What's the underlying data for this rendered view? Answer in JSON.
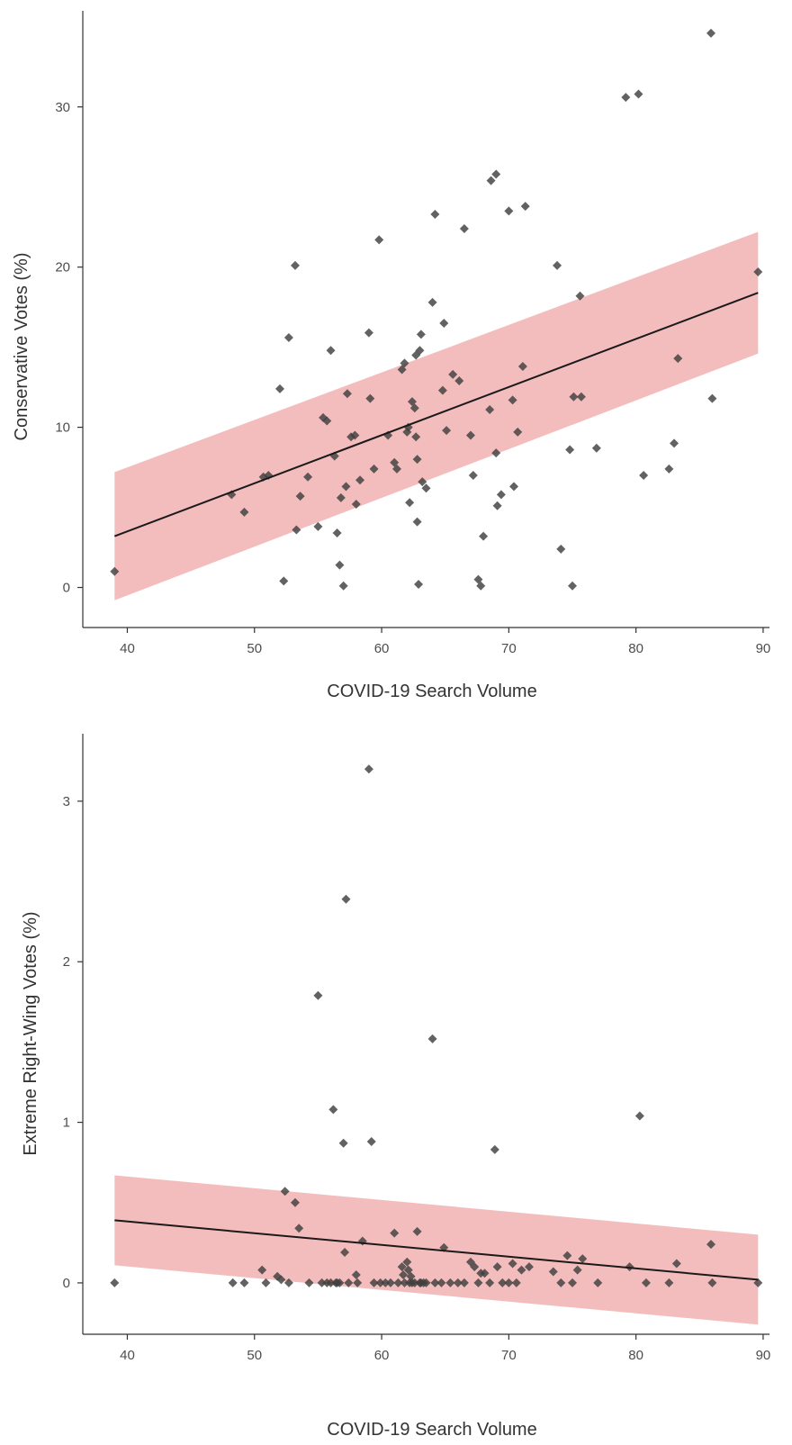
{
  "chart_data": [
    {
      "type": "scatter",
      "xlabel": "COVID-19 Search Volume",
      "ylabel": "Conservative Votes (%)",
      "xlim": [
        36.5,
        90.5
      ],
      "ylim": [
        -2.5,
        36.0
      ],
      "xticks": [
        "40",
        "50",
        "60",
        "70",
        "80",
        "90"
      ],
      "yticks": [
        "0",
        "10",
        "20",
        "30"
      ],
      "grid": false,
      "point_color": "#404040",
      "band_color": "#ee9999",
      "line_color": "#1a1a1a",
      "fit": {
        "x": [
          39,
          89.6
        ],
        "y": [
          3.2,
          18.4
        ],
        "band_low": [
          -0.8,
          14.6
        ],
        "band_high": [
          7.2,
          22.2
        ]
      },
      "series": [
        {
          "x": [
            39,
            48.2,
            49.2,
            50.7,
            51.1,
            52.0,
            52.3,
            52.7,
            53.2,
            53.3,
            53.6,
            54.2,
            55.0,
            55.4,
            55.7,
            56.0,
            56.3,
            56.5,
            56.7,
            56.8,
            57.0,
            57.2,
            57.3,
            57.6,
            57.9,
            58.0,
            58.3,
            59.0,
            59.1,
            59.4,
            59.8,
            60.5,
            61.0,
            61.2,
            61.6,
            61.8,
            62.0,
            62.1,
            62.2,
            62.4,
            62.6,
            62.7,
            62.7,
            62.8,
            62.8,
            62.9,
            63.0,
            63.1,
            63.2,
            63.5,
            64.0,
            64.2,
            64.8,
            64.9,
            65.1,
            65.6,
            66.1,
            66.5,
            67.0,
            67.2,
            67.6,
            67.8,
            68.0,
            68.5,
            68.6,
            69.0,
            69.0,
            69.1,
            69.4,
            70.0,
            70.3,
            70.4,
            70.7,
            71.1,
            71.3,
            73.8,
            74.1,
            74.8,
            75.0,
            75.1,
            75.6,
            75.7,
            76.9,
            79.2,
            80.2,
            80.6,
            82.6,
            83.0,
            83.3,
            85.9,
            86.0,
            89.6
          ],
          "y": [
            1.0,
            5.8,
            4.7,
            6.9,
            7.0,
            12.4,
            0.4,
            15.6,
            20.1,
            3.6,
            5.7,
            6.9,
            3.8,
            10.6,
            10.4,
            14.8,
            8.2,
            3.4,
            1.4,
            5.6,
            0.1,
            6.3,
            12.1,
            9.4,
            9.5,
            5.2,
            6.7,
            15.9,
            11.8,
            7.4,
            21.7,
            9.5,
            7.8,
            7.4,
            13.6,
            14.0,
            9.7,
            10.0,
            5.3,
            11.6,
            11.2,
            9.4,
            14.5,
            8.0,
            4.1,
            0.2,
            14.8,
            15.8,
            6.6,
            6.2,
            17.8,
            23.3,
            12.3,
            16.5,
            9.8,
            13.3,
            12.9,
            22.4,
            9.5,
            7.0,
            0.5,
            0.1,
            3.2,
            11.1,
            25.4,
            8.4,
            25.8,
            5.1,
            5.8,
            23.5,
            11.7,
            6.3,
            9.7,
            13.8,
            23.8,
            20.1,
            2.4,
            8.6,
            0.1,
            11.9,
            18.2,
            11.9,
            8.7,
            30.6,
            30.8,
            7.0,
            7.4,
            9.0,
            14.3,
            34.6,
            11.8,
            19.7
          ]
        }
      ]
    },
    {
      "type": "scatter",
      "xlabel": "COVID-19 Search Volume",
      "ylabel": "Extreme Right-Wing Votes (%)",
      "xlim": [
        36.5,
        90.5
      ],
      "ylim": [
        -0.32,
        3.42
      ],
      "xticks": [
        "40",
        "50",
        "60",
        "70",
        "80",
        "90"
      ],
      "yticks": [
        "0",
        "1",
        "2",
        "3"
      ],
      "grid": false,
      "point_color": "#404040",
      "band_color": "#ee9999",
      "line_color": "#1a1a1a",
      "fit": {
        "x": [
          39,
          89.6
        ],
        "y": [
          0.39,
          0.02
        ],
        "band_low": [
          0.11,
          -0.26
        ],
        "band_high": [
          0.67,
          0.3
        ]
      },
      "series": [
        {
          "x": [
            39,
            48.3,
            49.2,
            50.6,
            50.9,
            51.8,
            52.1,
            52.4,
            52.7,
            53.2,
            53.5,
            54.3,
            55.0,
            55.3,
            55.7,
            56.0,
            56.2,
            56.4,
            56.5,
            56.7,
            57.0,
            57.1,
            57.2,
            57.4,
            58.0,
            58.1,
            58.5,
            59.0,
            59.2,
            59.4,
            59.9,
            60.3,
            60.7,
            61.0,
            61.3,
            61.6,
            61.7,
            61.8,
            62.0,
            62.1,
            62.2,
            62.3,
            62.4,
            62.6,
            62.8,
            63.0,
            63.1,
            63.3,
            63.5,
            64.0,
            64.2,
            64.7,
            64.9,
            65.4,
            66.0,
            66.5,
            67.0,
            67.3,
            67.6,
            67.8,
            68.1,
            68.5,
            68.9,
            69.1,
            69.5,
            70.0,
            70.3,
            70.6,
            71.0,
            71.6,
            73.5,
            74.1,
            74.6,
            75.0,
            75.4,
            75.8,
            77.0,
            79.5,
            80.3,
            80.8,
            82.6,
            83.2,
            85.9,
            86.0,
            89.6
          ],
          "y": [
            0.0,
            0.0,
            0.0,
            0.08,
            0.0,
            0.04,
            0.02,
            0.57,
            0.0,
            0.5,
            0.34,
            0.0,
            1.79,
            0.0,
            0.0,
            0.0,
            1.08,
            0.0,
            0.0,
            0.0,
            0.87,
            0.19,
            2.39,
            0.0,
            0.05,
            0.0,
            0.26,
            3.2,
            0.88,
            0.0,
            0.0,
            0.0,
            0.0,
            0.31,
            0.0,
            0.1,
            0.05,
            0.0,
            0.13,
            0.08,
            0.0,
            0.04,
            0.0,
            0.0,
            0.32,
            0.0,
            0.0,
            0.0,
            0.0,
            1.52,
            0.0,
            0.0,
            0.22,
            0.0,
            0.0,
            0.0,
            0.13,
            0.1,
            0.0,
            0.06,
            0.06,
            0.0,
            0.83,
            0.1,
            0.0,
            0.0,
            0.12,
            0.0,
            0.08,
            0.1,
            0.07,
            0.0,
            0.17,
            0.0,
            0.08,
            0.15,
            0.0,
            0.1,
            1.04,
            0.0,
            0.0,
            0.12,
            0.24,
            0.0,
            0.0
          ]
        }
      ]
    }
  ]
}
